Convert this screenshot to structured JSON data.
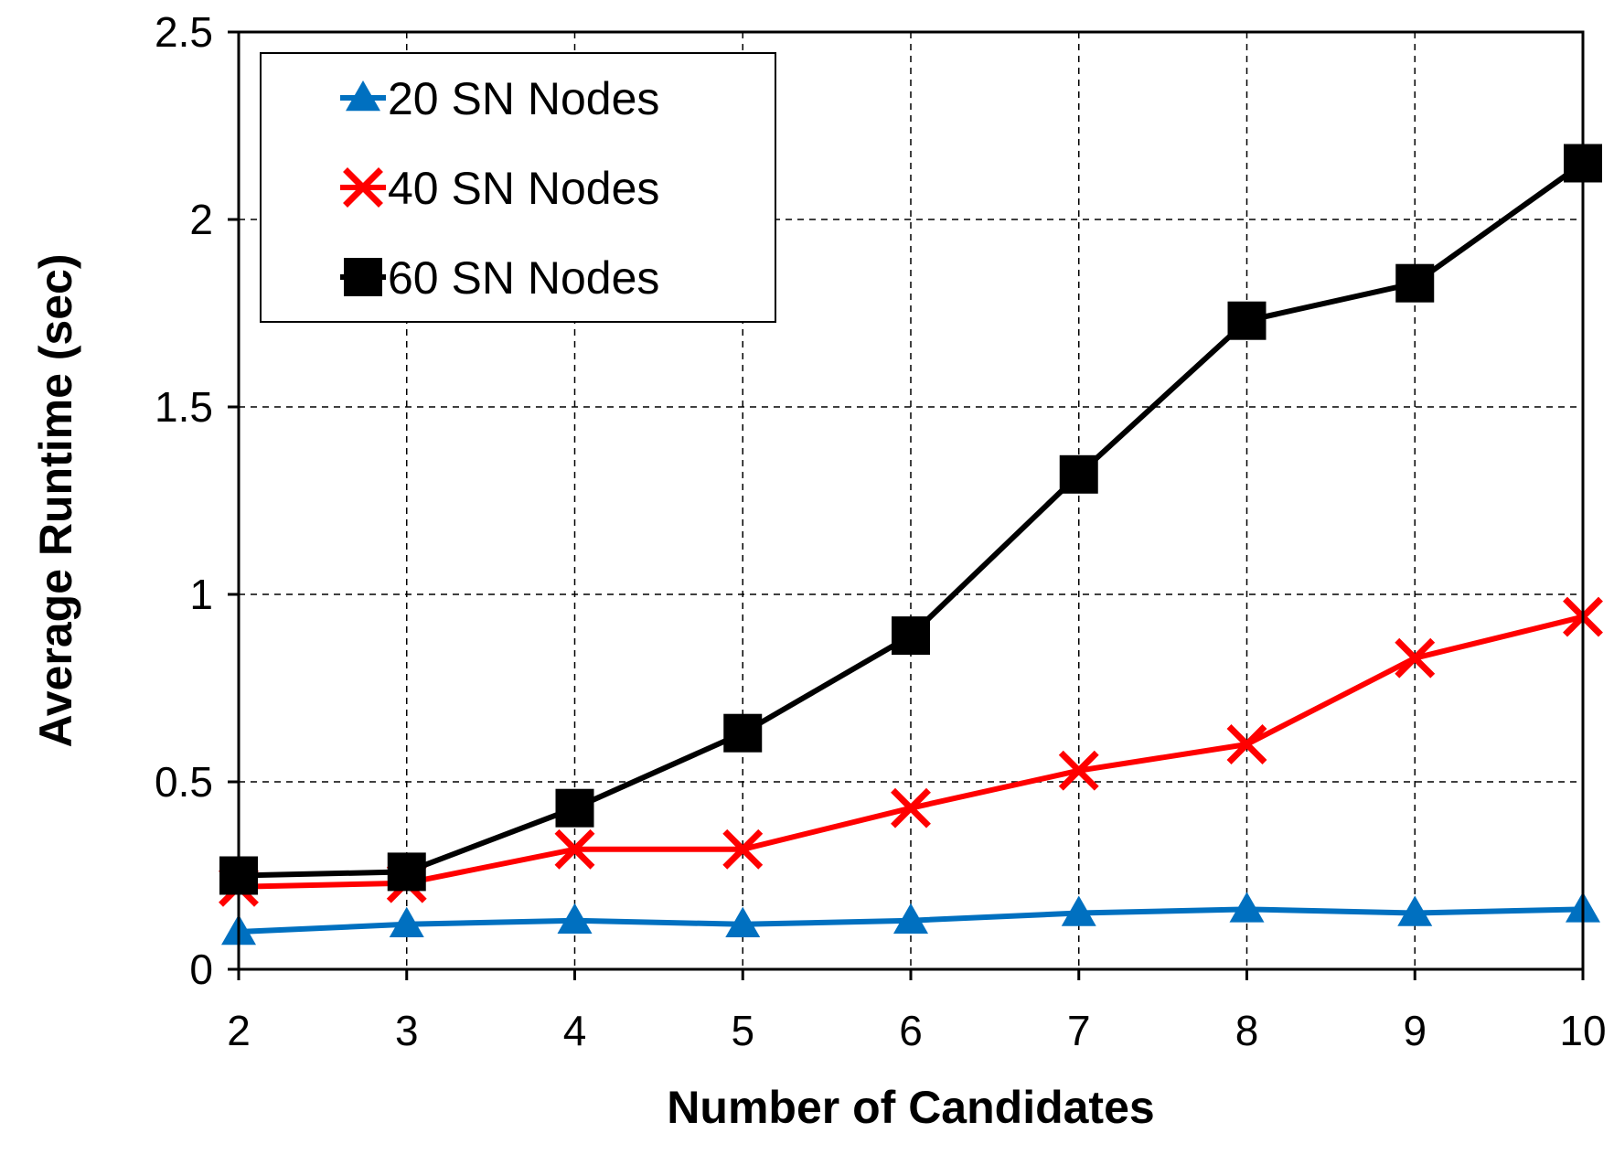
{
  "chart_data": {
    "type": "line",
    "title": "",
    "xlabel": "Number of Candidates",
    "ylabel": "Average Runtime (sec)",
    "x": [
      2,
      3,
      4,
      5,
      6,
      7,
      8,
      9,
      10
    ],
    "x_tick_labels": [
      "2",
      "3",
      "4",
      "5",
      "6",
      "7",
      "8",
      "9",
      "10"
    ],
    "xlim": [
      2,
      10
    ],
    "ylim": [
      0,
      2.5
    ],
    "y_tick_values": [
      0,
      0.5,
      1,
      1.5,
      2,
      2.5
    ],
    "y_tick_labels": [
      "0",
      "0.5",
      "1",
      "1.5",
      "2",
      "2.5"
    ],
    "grid": true,
    "legend_position": "top-left",
    "series": [
      {
        "name": "20 SN Nodes",
        "marker": "triangle",
        "color": "#0070C0",
        "values": [
          0.1,
          0.12,
          0.13,
          0.12,
          0.13,
          0.15,
          0.16,
          0.15,
          0.16
        ]
      },
      {
        "name": "40 SN Nodes",
        "marker": "x",
        "color": "#FF0000",
        "values": [
          0.22,
          0.23,
          0.32,
          0.32,
          0.43,
          0.53,
          0.6,
          0.83,
          0.94
        ]
      },
      {
        "name": "60 SN Nodes",
        "marker": "square",
        "color": "#000000",
        "values": [
          0.25,
          0.26,
          0.43,
          0.63,
          0.89,
          1.32,
          1.73,
          1.83,
          2.15
        ]
      }
    ]
  }
}
